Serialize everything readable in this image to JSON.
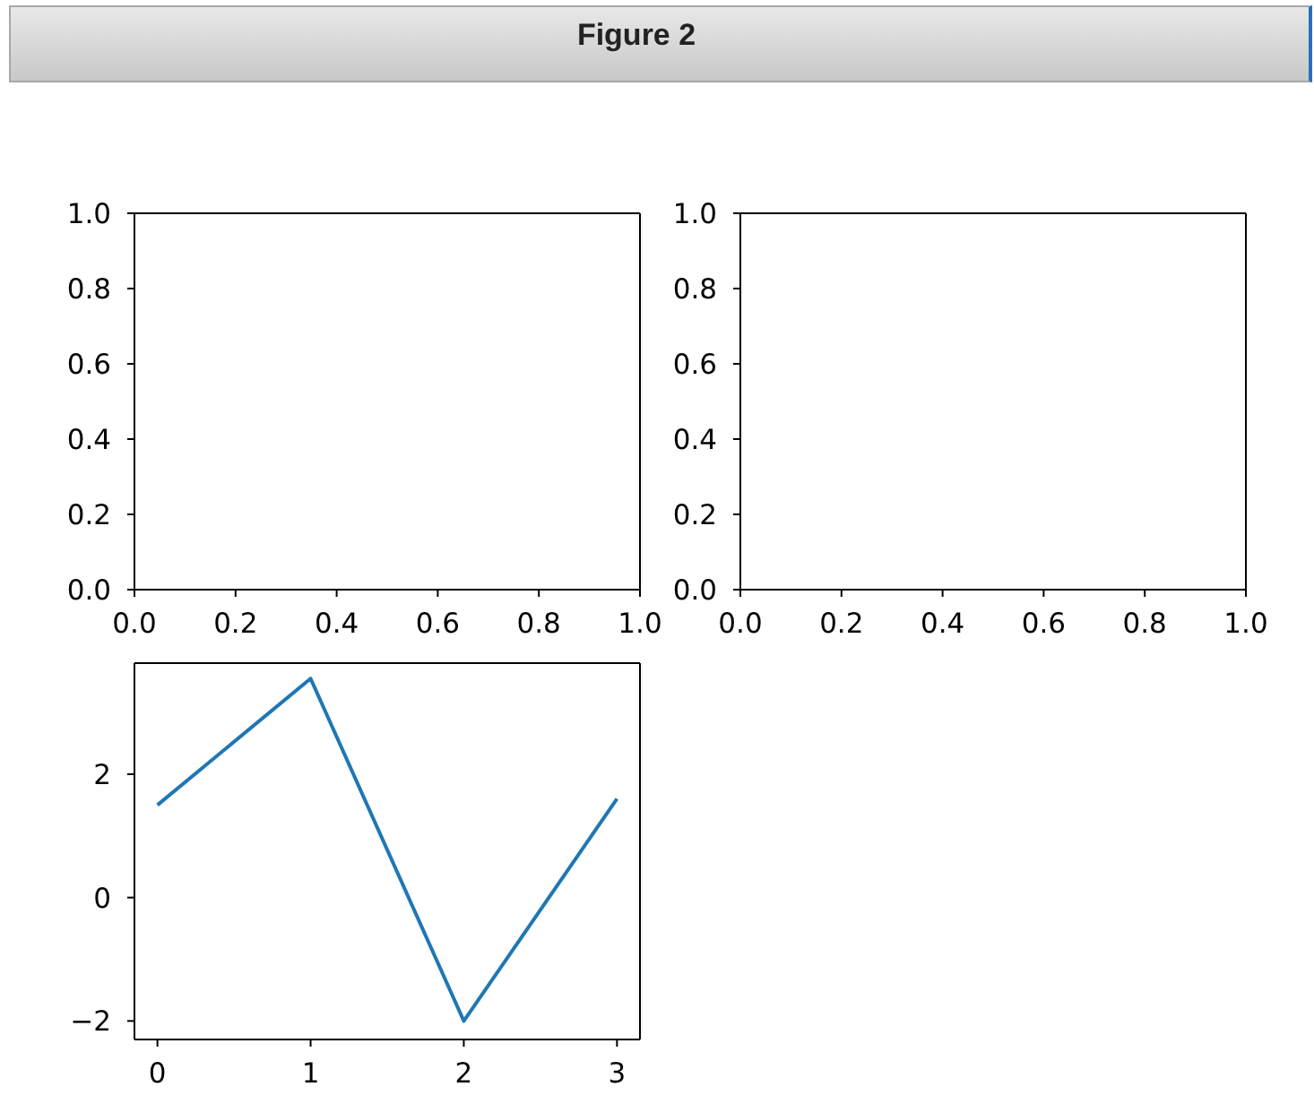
{
  "chart_data": [
    {
      "type": "line",
      "title": "Figure 2",
      "xlim": [
        0,
        1
      ],
      "ylim": [
        0,
        1
      ],
      "xticks": [
        {
          "value": 0,
          "label": "0.0"
        },
        {
          "value": 0.2,
          "label": "0.2"
        },
        {
          "value": 0.4,
          "label": "0.4"
        },
        {
          "value": 0.6,
          "label": "0.6"
        },
        {
          "value": 0.8,
          "label": "0.8"
        },
        {
          "value": 1,
          "label": "1.0"
        }
      ],
      "yticks": [
        {
          "value": 0,
          "label": "0.0"
        },
        {
          "value": 0.2,
          "label": "0.2"
        },
        {
          "value": 0.4,
          "label": "0.4"
        },
        {
          "value": 0.6,
          "label": "0.6"
        },
        {
          "value": 0.8,
          "label": "0.8"
        },
        {
          "value": 1,
          "label": "1.0"
        }
      ]
    },
    {
      "type": "line",
      "xlim": [
        0,
        1
      ],
      "ylim": [
        0,
        1
      ],
      "xticks": [
        {
          "value": 0,
          "label": "0.0"
        },
        {
          "value": 0.2,
          "label": "0.2"
        },
        {
          "value": 0.4,
          "label": "0.4"
        },
        {
          "value": 0.6,
          "label": "0.6"
        },
        {
          "value": 0.8,
          "label": "0.8"
        },
        {
          "value": 1,
          "label": "1.0"
        }
      ],
      "yticks": [
        {
          "value": 0,
          "label": "0.0"
        },
        {
          "value": 0.2,
          "label": "0.2"
        },
        {
          "value": 0.4,
          "label": "0.4"
        },
        {
          "value": 0.6,
          "label": "0.6"
        },
        {
          "value": 0.8,
          "label": "0.8"
        },
        {
          "value": 1,
          "label": "1.0"
        }
      ]
    },
    {
      "type": "line",
      "x": [
        0,
        1,
        2,
        3
      ],
      "series": [
        {
          "color": "#1f77b4",
          "values": [
            1.5,
            3.55,
            -2.0,
            1.6
          ]
        }
      ],
      "xlim": [
        -0.15,
        3.15
      ],
      "ylim": [
        -2.3,
        3.8
      ],
      "xticks": [
        0,
        1,
        2,
        3
      ],
      "yticks": [
        {
          "value": -2,
          "label": "−2"
        },
        0,
        2
      ],
      "marker": "none",
      "line_style": "solid"
    }
  ]
}
